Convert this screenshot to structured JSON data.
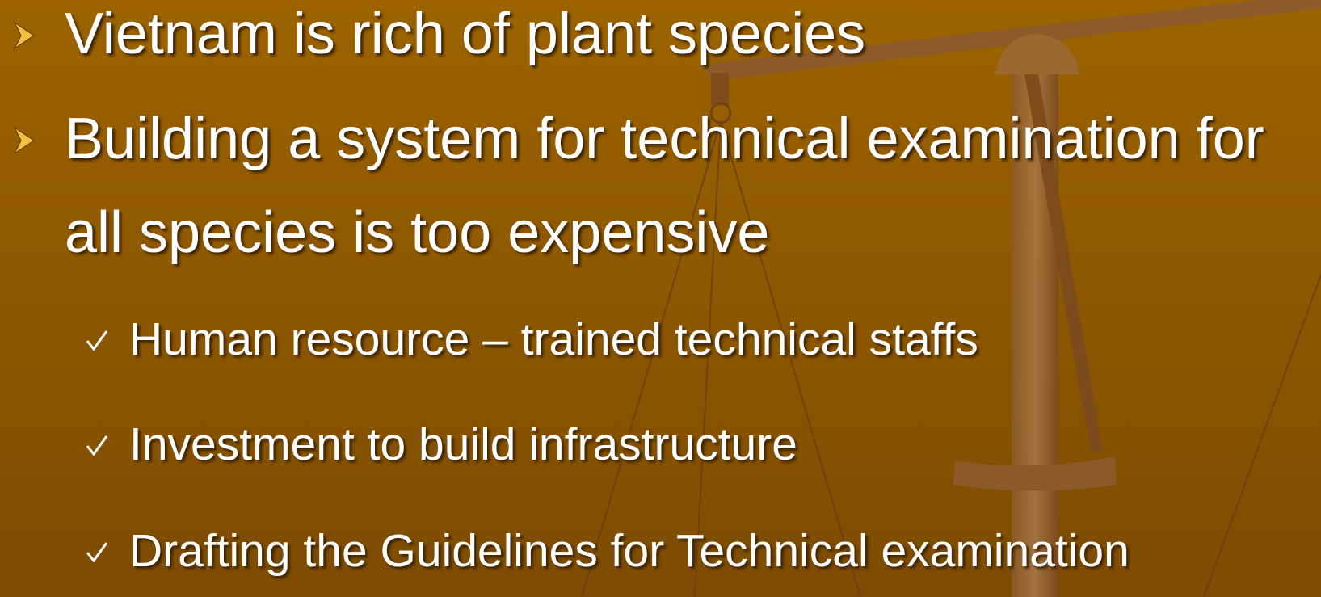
{
  "bullets": [
    {
      "lines": [
        "Vietnam is rich of plant species"
      ]
    },
    {
      "lines": [
        "Building a system for technical examination for",
        "all species is too expensive"
      ],
      "sub": [
        "Human resource – trained technical staffs",
        "Investment to build infrastructure",
        "Drafting the Guidelines for Technical examination"
      ]
    }
  ]
}
